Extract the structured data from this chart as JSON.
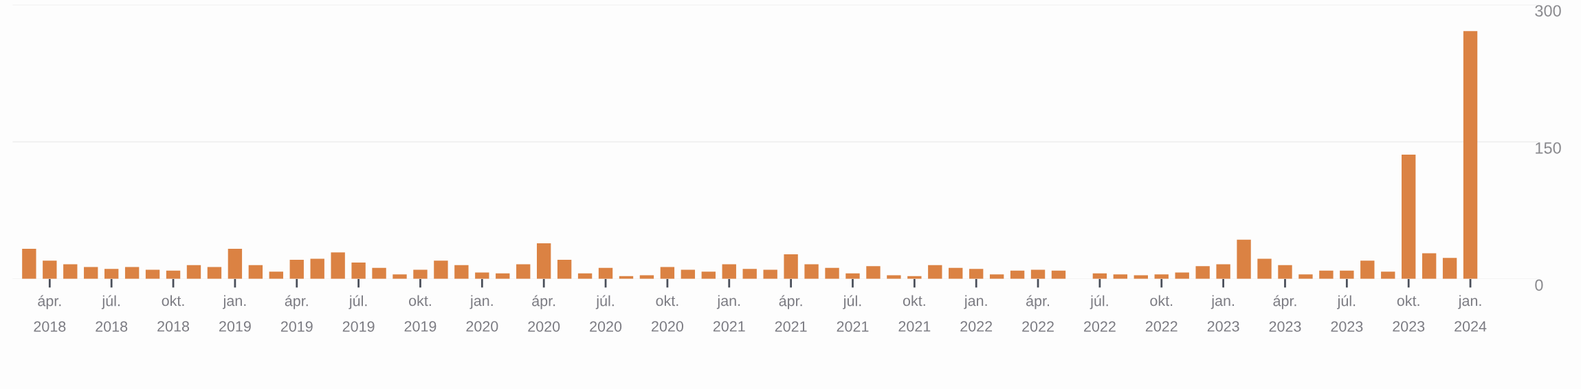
{
  "chart_data": {
    "type": "bar",
    "categories": [
      null,
      "ápr.\n2018",
      null,
      null,
      "júl.\n2018",
      null,
      null,
      "okt.\n2018",
      null,
      null,
      "jan.\n2019",
      null,
      null,
      "ápr.\n2019",
      null,
      null,
      "júl.\n2019",
      null,
      null,
      "okt.\n2019",
      null,
      null,
      "jan.\n2020",
      null,
      null,
      "ápr.\n2020",
      null,
      null,
      "júl.\n2020",
      null,
      null,
      "okt.\n2020",
      null,
      null,
      "jan.\n2021",
      null,
      null,
      "ápr.\n2021",
      null,
      null,
      "júl.\n2021",
      null,
      null,
      "okt.\n2021",
      null,
      null,
      "jan.\n2022",
      null,
      null,
      "ápr.\n2022",
      null,
      null,
      "júl.\n2022",
      null,
      null,
      "okt.\n2022",
      null,
      null,
      "jan.\n2023",
      null,
      null,
      "ápr.\n2023",
      null,
      null,
      "júl.\n2023",
      null,
      null,
      "okt.\n2023",
      null,
      null,
      "jan.\n2024"
    ],
    "values": [
      33,
      20,
      16,
      13,
      11,
      13,
      10,
      9,
      15,
      13,
      33,
      15,
      8,
      21,
      22,
      29,
      18,
      12,
      5,
      10,
      20,
      15,
      7,
      6,
      16,
      39,
      21,
      6,
      12,
      3,
      4,
      13,
      10,
      8,
      16,
      11,
      10,
      27,
      16,
      12,
      6,
      14,
      4,
      3,
      15,
      12,
      11,
      5,
      9,
      10,
      9,
      null,
      6,
      5,
      4,
      5,
      7,
      14,
      16,
      43,
      22,
      15,
      5,
      9,
      9,
      20,
      8,
      136,
      28,
      23,
      271
    ],
    "color": "#db8243",
    "ylim": [
      0,
      300
    ],
    "yticks": [
      0,
      150,
      300
    ],
    "grid": "y"
  }
}
